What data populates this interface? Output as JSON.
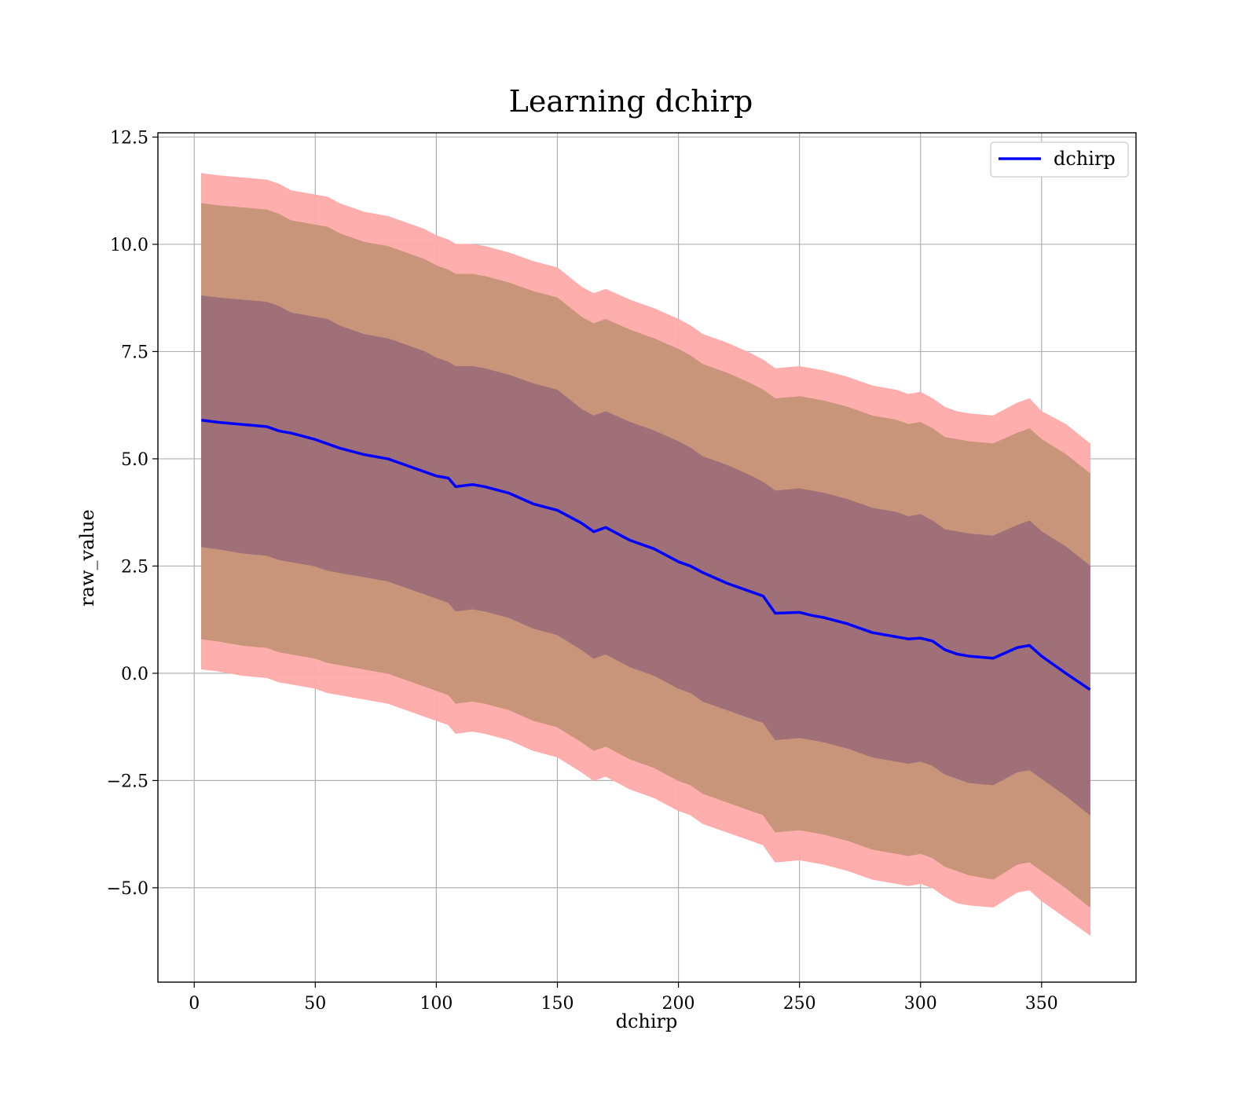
{
  "chart_data": {
    "type": "line",
    "title": "Learning dchirp",
    "xlabel": "dchirp",
    "ylabel": "raw_value",
    "xlim": [
      -15,
      389
    ],
    "ylim": [
      -7.2,
      12.6
    ],
    "xticks": [
      0,
      50,
      100,
      150,
      200,
      250,
      300,
      350
    ],
    "yticks": [
      12.5,
      10.0,
      7.5,
      5.0,
      2.5,
      0.0,
      -2.5,
      -5.0
    ],
    "xtick_labels": [
      "0",
      "50",
      "100",
      "150",
      "200",
      "250",
      "300",
      "350"
    ],
    "ytick_labels": [
      "12.5",
      "10.0",
      "7.5",
      "5.0",
      "2.5",
      "0.0",
      "−2.5",
      "−5.0"
    ],
    "grid": true,
    "legend": {
      "position": "top-right",
      "entries": [
        "dchirp"
      ]
    },
    "colors": {
      "line": "#0000ff",
      "band_outer": "#ffaaaa",
      "band_middle": "#c8957a",
      "band_inner": "#a07078"
    },
    "series": [
      {
        "name": "dchirp",
        "x": [
          3,
          10,
          20,
          30,
          35,
          40,
          50,
          55,
          60,
          70,
          80,
          85,
          90,
          95,
          100,
          105,
          108,
          115,
          120,
          130,
          140,
          150,
          160,
          165,
          170,
          180,
          190,
          200,
          205,
          210,
          220,
          230,
          235,
          240,
          250,
          255,
          260,
          270,
          280,
          290,
          295,
          300,
          305,
          310,
          315,
          320,
          330,
          340,
          345,
          350,
          360,
          370
        ],
        "y": [
          5.9,
          5.85,
          5.8,
          5.75,
          5.65,
          5.6,
          5.45,
          5.35,
          5.25,
          5.1,
          5.0,
          4.9,
          4.8,
          4.7,
          4.6,
          4.55,
          4.35,
          4.4,
          4.35,
          4.2,
          3.95,
          3.8,
          3.5,
          3.3,
          3.4,
          3.1,
          2.9,
          2.6,
          2.5,
          2.35,
          2.1,
          1.9,
          1.8,
          1.4,
          1.42,
          1.35,
          1.3,
          1.15,
          0.95,
          0.85,
          0.8,
          0.82,
          0.75,
          0.55,
          0.45,
          0.4,
          0.35,
          0.6,
          0.65,
          0.4,
          0.0,
          -0.38
        ],
        "band_outer_upper": [
          11.65,
          11.6,
          11.55,
          11.5,
          11.4,
          11.25,
          11.15,
          11.1,
          10.95,
          10.75,
          10.65,
          10.55,
          10.45,
          10.35,
          10.2,
          10.1,
          10.0,
          10.0,
          9.95,
          9.8,
          9.6,
          9.45,
          9.0,
          8.85,
          8.95,
          8.7,
          8.5,
          8.25,
          8.1,
          7.9,
          7.7,
          7.45,
          7.3,
          7.1,
          7.15,
          7.1,
          7.05,
          6.9,
          6.7,
          6.6,
          6.5,
          6.55,
          6.4,
          6.2,
          6.1,
          6.05,
          6.0,
          6.3,
          6.4,
          6.1,
          5.8,
          5.35
        ],
        "band_outer_lower": [
          0.1,
          0.05,
          -0.05,
          -0.1,
          -0.2,
          -0.25,
          -0.35,
          -0.45,
          -0.5,
          -0.6,
          -0.7,
          -0.8,
          -0.9,
          -1.0,
          -1.1,
          -1.2,
          -1.4,
          -1.35,
          -1.4,
          -1.55,
          -1.8,
          -1.95,
          -2.3,
          -2.5,
          -2.4,
          -2.7,
          -2.9,
          -3.2,
          -3.3,
          -3.5,
          -3.7,
          -3.9,
          -4.0,
          -4.4,
          -4.35,
          -4.4,
          -4.45,
          -4.6,
          -4.8,
          -4.9,
          -4.95,
          -4.9,
          -5.0,
          -5.2,
          -5.35,
          -5.4,
          -5.45,
          -5.1,
          -5.05,
          -5.3,
          -5.7,
          -6.1
        ],
        "band_middle_upper": [
          10.95,
          10.9,
          10.85,
          10.8,
          10.7,
          10.55,
          10.45,
          10.4,
          10.25,
          10.05,
          9.95,
          9.85,
          9.75,
          9.65,
          9.5,
          9.4,
          9.3,
          9.3,
          9.25,
          9.1,
          8.9,
          8.75,
          8.3,
          8.15,
          8.25,
          8.0,
          7.8,
          7.55,
          7.4,
          7.2,
          7.0,
          6.75,
          6.6,
          6.4,
          6.45,
          6.4,
          6.35,
          6.2,
          6.0,
          5.9,
          5.8,
          5.85,
          5.7,
          5.5,
          5.45,
          5.4,
          5.35,
          5.6,
          5.7,
          5.45,
          5.1,
          4.65
        ],
        "band_middle_lower": [
          0.8,
          0.75,
          0.65,
          0.6,
          0.5,
          0.45,
          0.35,
          0.25,
          0.2,
          0.1,
          0.0,
          -0.1,
          -0.2,
          -0.3,
          -0.4,
          -0.5,
          -0.7,
          -0.65,
          -0.7,
          -0.85,
          -1.1,
          -1.25,
          -1.6,
          -1.8,
          -1.7,
          -2.0,
          -2.2,
          -2.5,
          -2.6,
          -2.8,
          -3.0,
          -3.2,
          -3.3,
          -3.7,
          -3.65,
          -3.7,
          -3.75,
          -3.9,
          -4.1,
          -4.2,
          -4.25,
          -4.2,
          -4.3,
          -4.5,
          -4.6,
          -4.7,
          -4.8,
          -4.45,
          -4.4,
          -4.6,
          -5.0,
          -5.45
        ],
        "band_inner_upper": [
          8.8,
          8.75,
          8.7,
          8.65,
          8.55,
          8.4,
          8.3,
          8.25,
          8.1,
          7.9,
          7.8,
          7.7,
          7.6,
          7.5,
          7.35,
          7.25,
          7.15,
          7.15,
          7.1,
          6.95,
          6.75,
          6.6,
          6.15,
          6.0,
          6.1,
          5.85,
          5.65,
          5.4,
          5.25,
          5.05,
          4.85,
          4.6,
          4.45,
          4.25,
          4.3,
          4.25,
          4.2,
          4.05,
          3.85,
          3.75,
          3.65,
          3.7,
          3.55,
          3.35,
          3.3,
          3.25,
          3.2,
          3.45,
          3.55,
          3.3,
          2.95,
          2.5
        ],
        "band_inner_lower": [
          2.95,
          2.9,
          2.8,
          2.75,
          2.65,
          2.6,
          2.5,
          2.4,
          2.35,
          2.25,
          2.15,
          2.05,
          1.95,
          1.85,
          1.75,
          1.65,
          1.45,
          1.5,
          1.45,
          1.3,
          1.05,
          0.9,
          0.55,
          0.35,
          0.45,
          0.15,
          -0.05,
          -0.35,
          -0.45,
          -0.65,
          -0.85,
          -1.05,
          -1.15,
          -1.55,
          -1.5,
          -1.55,
          -1.6,
          -1.75,
          -1.95,
          -2.05,
          -2.1,
          -2.05,
          -2.15,
          -2.35,
          -2.45,
          -2.55,
          -2.6,
          -2.3,
          -2.25,
          -2.45,
          -2.85,
          -3.3
        ]
      }
    ]
  }
}
